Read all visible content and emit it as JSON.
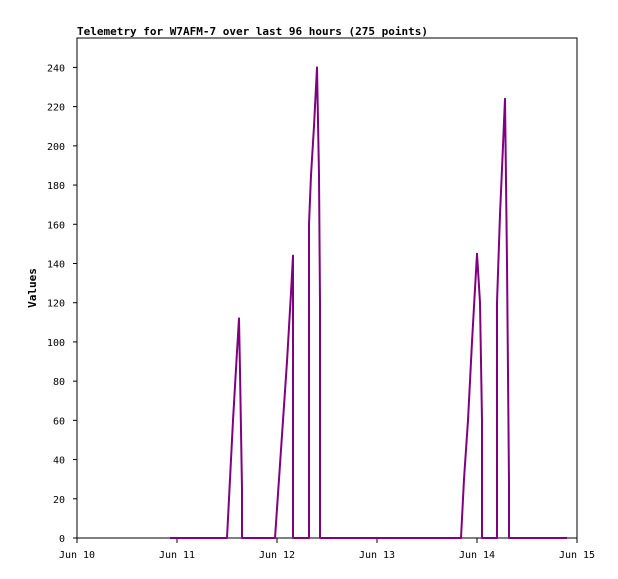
{
  "chart_data": {
    "type": "line",
    "title": "Telemetry for W7AFM-7 over last 96 hours (275 points)",
    "xlabel": "",
    "ylabel": "Values",
    "x_ticks": [
      "Jun 10",
      "Jun 11",
      "Jun 12",
      "Jun 13",
      "Jun 14",
      "Jun 15"
    ],
    "y_ticks": [
      "0",
      "20",
      "40",
      "60",
      "80",
      "100",
      "120",
      "140",
      "160",
      "180",
      "200",
      "220",
      "240"
    ],
    "xlim": [
      0,
      5
    ],
    "ylim": [
      0,
      255
    ],
    "grid": false,
    "legend": "none",
    "series_color": "#800080",
    "series": [
      {
        "x": [
          0.93,
          1.5,
          1.53,
          1.56,
          1.6,
          1.62,
          1.63,
          1.65,
          1.65,
          1.98,
          2.02,
          2.06,
          2.1,
          2.14,
          2.16,
          2.16,
          2.32,
          2.32,
          2.34,
          2.37,
          2.4,
          2.42,
          2.43,
          2.43,
          3.84,
          3.87,
          3.91,
          3.95,
          4.0,
          4.03,
          4.05,
          4.05,
          4.2,
          4.2,
          4.23,
          4.26,
          4.28,
          4.3,
          4.32,
          4.32,
          4.9
        ],
        "y": [
          0,
          0,
          30,
          60,
          95,
          112,
          85,
          25,
          0,
          0,
          30,
          60,
          90,
          125,
          144,
          0,
          0,
          160,
          185,
          210,
          240,
          185,
          120,
          0,
          0,
          30,
          60,
          100,
          145,
          120,
          60,
          0,
          0,
          120,
          165,
          200,
          224,
          140,
          28,
          0,
          0
        ]
      }
    ]
  }
}
